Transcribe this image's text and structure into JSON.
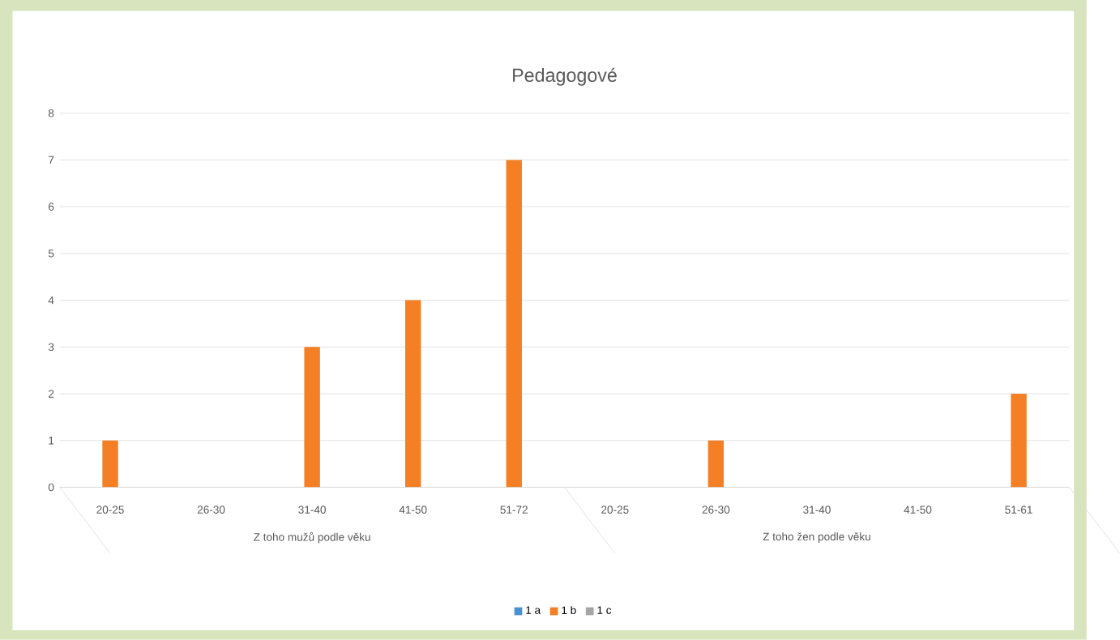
{
  "chart_data": {
    "type": "bar",
    "title": "Pedagogové",
    "categories": [
      "20-25",
      "26-30",
      "31-40",
      "41-50",
      "51-72",
      "20-25",
      "26-30",
      "31-40",
      "41-50",
      "51-61"
    ],
    "annotations": [
      "Z toho mužů podle věku",
      "Z toho žen podle věku"
    ],
    "series": [
      {
        "name": "1 a",
        "color": "#4a8fd0",
        "values": [
          0,
          0,
          0,
          0,
          0,
          0,
          0,
          0,
          0,
          0
        ]
      },
      {
        "name": "1 b",
        "color": "#f47f24",
        "values": [
          1,
          0,
          3,
          4,
          7,
          0,
          1,
          0,
          0,
          2
        ]
      },
      {
        "name": "1 c",
        "color": "#a5a5a5",
        "values": [
          0,
          0,
          0,
          0,
          0,
          0,
          0,
          0,
          0,
          0
        ]
      }
    ],
    "ylim": [
      0,
      8
    ],
    "yticks": [
      0,
      1,
      2,
      3,
      4,
      5,
      6,
      7,
      8
    ],
    "grid": "y",
    "legend": "bottom"
  }
}
